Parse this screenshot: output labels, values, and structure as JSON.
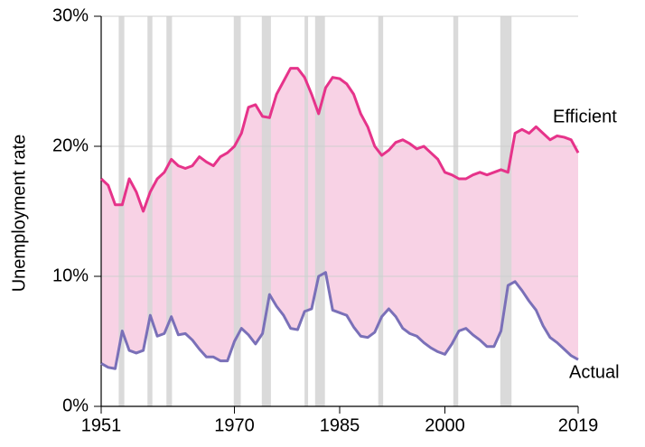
{
  "chart_data": {
    "type": "line",
    "ylabel": "Unemployment rate",
    "x": [
      1951,
      1952,
      1953,
      1954,
      1955,
      1956,
      1957,
      1958,
      1959,
      1960,
      1961,
      1962,
      1963,
      1964,
      1965,
      1966,
      1967,
      1968,
      1969,
      1970,
      1971,
      1972,
      1973,
      1974,
      1975,
      1976,
      1977,
      1978,
      1979,
      1980,
      1981,
      1982,
      1983,
      1984,
      1985,
      1986,
      1987,
      1988,
      1989,
      1990,
      1991,
      1992,
      1993,
      1994,
      1995,
      1996,
      1997,
      1998,
      1999,
      2000,
      2001,
      2002,
      2003,
      2004,
      2005,
      2006,
      2007,
      2008,
      2009,
      2010,
      2011,
      2012,
      2013,
      2014,
      2015,
      2016,
      2017,
      2018,
      2019
    ],
    "series": [
      {
        "name": "Efficient",
        "color": "#e6338a",
        "values": [
          17.5,
          17,
          15.5,
          15.5,
          17.5,
          16.5,
          15,
          16.5,
          17.5,
          18,
          19,
          18.5,
          18.3,
          18.5,
          19.2,
          18.8,
          18.5,
          19.2,
          19.5,
          20,
          21,
          23,
          23.2,
          22.3,
          22.2,
          24,
          25,
          26,
          26,
          25.3,
          24,
          22.5,
          24.5,
          25.3,
          25.2,
          24.8,
          24,
          22.5,
          21.5,
          20,
          19.3,
          19.7,
          20.3,
          20.5,
          20.2,
          19.8,
          20,
          19.5,
          19,
          18,
          17.8,
          17.5,
          17.5,
          17.8,
          18,
          17.8,
          18,
          18.2,
          18,
          21,
          21.3,
          21,
          21.5,
          21,
          20.5,
          20.8,
          20.7,
          20.5,
          19.5
        ]
      },
      {
        "name": "Actual",
        "color": "#7a70b8",
        "values": [
          3.3,
          3.0,
          2.9,
          5.8,
          4.3,
          4.1,
          4.3,
          7.0,
          5.4,
          5.6,
          6.9,
          5.5,
          5.6,
          5.1,
          4.4,
          3.8,
          3.8,
          3.5,
          3.5,
          5.0,
          6.0,
          5.5,
          4.8,
          5.6,
          8.6,
          7.7,
          7.0,
          6.0,
          5.9,
          7.3,
          7.5,
          10.0,
          10.3,
          7.4,
          7.2,
          7.0,
          6.1,
          5.4,
          5.3,
          5.7,
          6.9,
          7.5,
          6.9,
          6.0,
          5.6,
          5.4,
          4.9,
          4.5,
          4.2,
          4.0,
          4.8,
          5.8,
          6.0,
          5.5,
          5.1,
          4.6,
          4.6,
          5.8,
          9.3,
          9.6,
          8.9,
          8.1,
          7.4,
          6.2,
          5.3,
          4.9,
          4.4,
          3.9,
          3.6
        ]
      }
    ],
    "fill_between_color": "#f8d2e5",
    "shaded_periods": [
      [
        1953.5,
        1954.3
      ],
      [
        1957.6,
        1958.3
      ],
      [
        1960.3,
        1961.1
      ],
      [
        1969.9,
        1970.9
      ],
      [
        1973.9,
        1975.2
      ],
      [
        1980.0,
        1980.5
      ],
      [
        1981.5,
        1982.9
      ],
      [
        1990.5,
        1991.2
      ],
      [
        2001.2,
        2001.9
      ],
      [
        2007.9,
        2009.5
      ]
    ],
    "shade_color": "#d6d6d6",
    "xlim": [
      1951,
      2019
    ],
    "xticks": [
      1951,
      1970,
      1985,
      2000,
      2019
    ],
    "ylim": [
      0,
      30
    ],
    "yticks": [
      {
        "value": 0,
        "label": "0%"
      },
      {
        "value": 10,
        "label": "10%"
      },
      {
        "value": 20,
        "label": "20%"
      },
      {
        "value": 30,
        "label": "30%"
      }
    ],
    "grid": true
  }
}
